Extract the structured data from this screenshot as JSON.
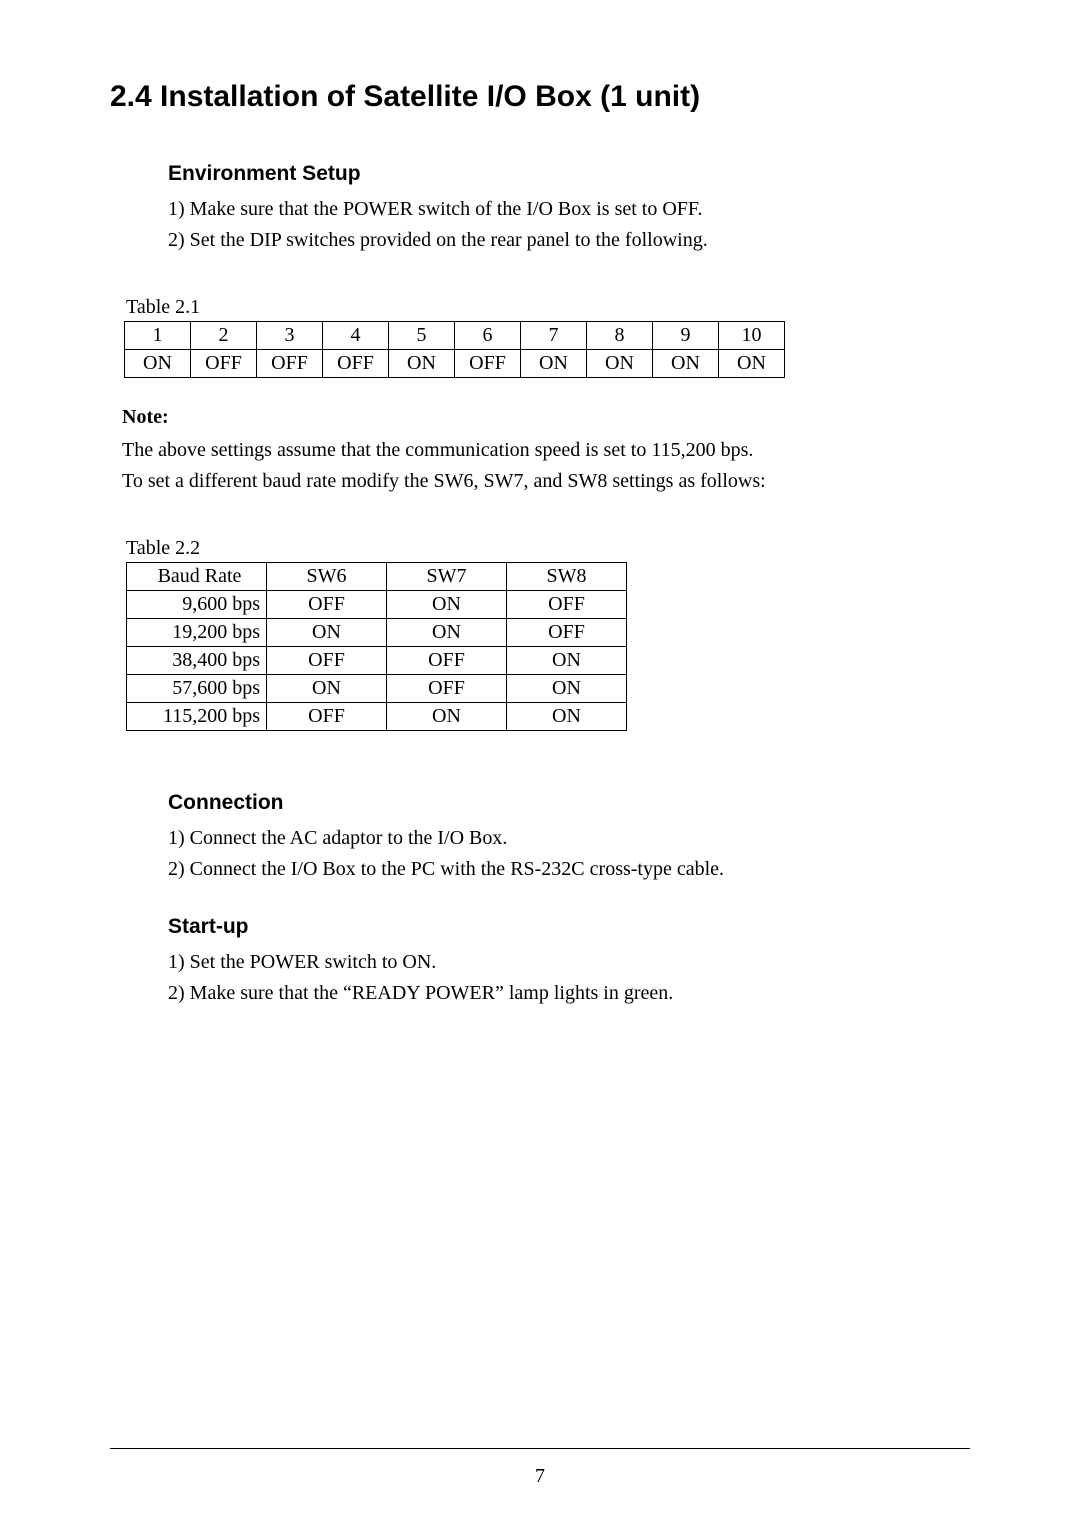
{
  "section": {
    "title": "2.4   Installation of Satellite I/O Box (1 unit)"
  },
  "environment": {
    "heading": "Environment Setup",
    "step1": "1) Make sure that the POWER switch of the I/O Box is set to OFF.",
    "step2": "2)    Set the DIP switches provided on the rear panel to the following."
  },
  "table1": {
    "label": "Table 2.1",
    "headers": [
      "1",
      "2",
      "3",
      "4",
      "5",
      "6",
      "7",
      "8",
      "9",
      "10"
    ],
    "values": [
      "ON",
      "OFF",
      "OFF",
      "OFF",
      "ON",
      "OFF",
      "ON",
      "ON",
      "ON",
      "ON"
    ]
  },
  "note": {
    "label": "Note:",
    "line1": "The above settings assume that the communication speed is set to 115,200 bps.",
    "line2": "To set a different baud rate modify the SW6, SW7, and SW8 settings as follows:"
  },
  "table2": {
    "label": "Table 2.2",
    "headers": [
      "Baud Rate",
      "SW6",
      "SW7",
      "SW8"
    ],
    "rows": [
      [
        "9,600 bps",
        "OFF",
        "ON",
        "OFF"
      ],
      [
        "19,200 bps",
        "ON",
        "ON",
        "OFF"
      ],
      [
        "38,400 bps",
        "OFF",
        "OFF",
        "ON"
      ],
      [
        "57,600 bps",
        "ON",
        "OFF",
        "ON"
      ],
      [
        "115,200 bps",
        "OFF",
        "ON",
        "ON"
      ]
    ]
  },
  "connection": {
    "heading": "Connection",
    "step1": "1) Connect the AC adaptor to the I/O Box.",
    "step2": "2) Connect the I/O Box to the PC with the RS-232C cross-type cable."
  },
  "startup": {
    "heading": "Start-up",
    "step1": "1) Set the POWER switch to ON.",
    "step2": "2) Make sure that the “READY POWER” lamp lights in green."
  },
  "page_number": "7"
}
